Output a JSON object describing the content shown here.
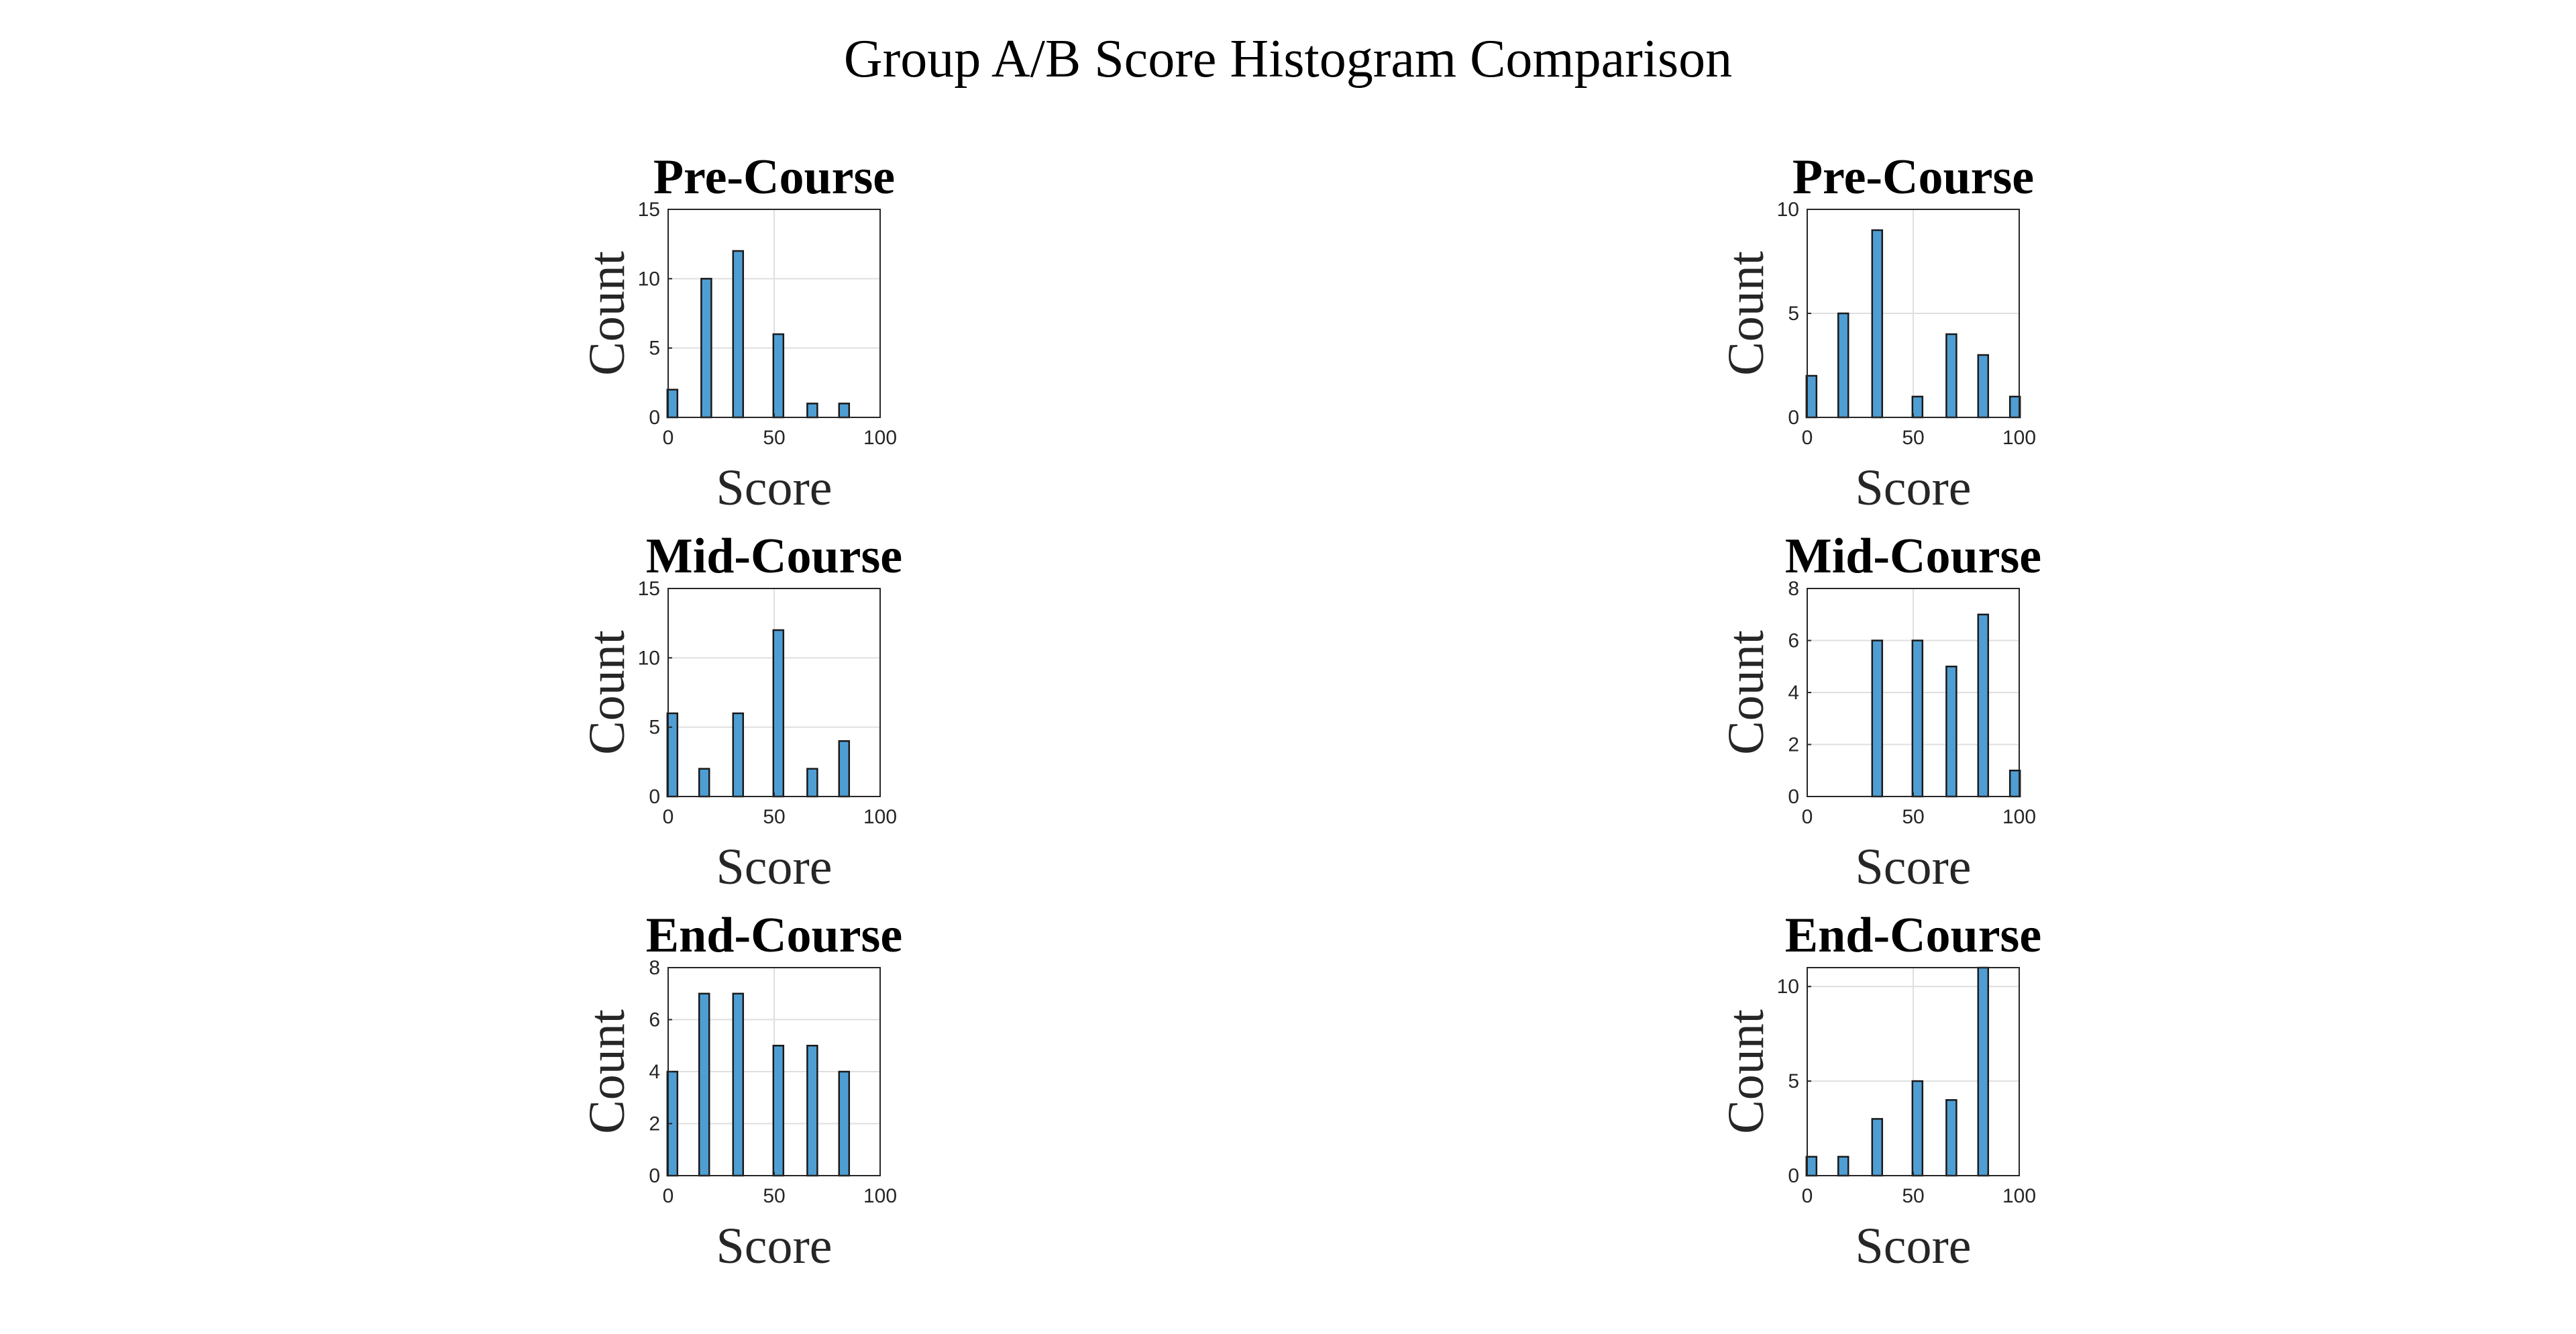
{
  "figure": {
    "title": "Group A/B Score Histogram Comparison",
    "bar_color": "#4f9ed3"
  },
  "chart_data": [
    {
      "type": "bar",
      "title": "Pre-Course",
      "xlabel": "Score",
      "ylabel": "Count",
      "xlim": [
        0,
        100
      ],
      "ylim": [
        0,
        15
      ],
      "xticks": [
        0,
        50,
        100
      ],
      "yticks": [
        0,
        5,
        10,
        15
      ],
      "grid": true,
      "x": [
        2,
        18,
        33,
        52,
        68,
        83
      ],
      "values": [
        2,
        10,
        12,
        6,
        1,
        1
      ]
    },
    {
      "type": "bar",
      "title": "Pre-Course",
      "xlabel": "Score",
      "ylabel": "Count",
      "xlim": [
        0,
        100
      ],
      "ylim": [
        0,
        10
      ],
      "xticks": [
        0,
        50,
        100
      ],
      "yticks": [
        0,
        5,
        10
      ],
      "grid": true,
      "x": [
        2,
        17,
        33,
        52,
        68,
        83,
        98
      ],
      "values": [
        2,
        5,
        9,
        1,
        4,
        3,
        1
      ]
    },
    {
      "type": "bar",
      "title": "Mid-Course",
      "xlabel": "Score",
      "ylabel": "Count",
      "xlim": [
        0,
        100
      ],
      "ylim": [
        0,
        15
      ],
      "xticks": [
        0,
        50,
        100
      ],
      "yticks": [
        0,
        5,
        10,
        15
      ],
      "grid": true,
      "x": [
        2,
        17,
        33,
        52,
        68,
        83
      ],
      "values": [
        6,
        2,
        6,
        12,
        2,
        4
      ]
    },
    {
      "type": "bar",
      "title": "Mid-Course",
      "xlabel": "Score",
      "ylabel": "Count",
      "xlim": [
        0,
        100
      ],
      "ylim": [
        0,
        8
      ],
      "xticks": [
        0,
        50,
        100
      ],
      "yticks": [
        0,
        2,
        4,
        6,
        8
      ],
      "grid": true,
      "x": [
        33,
        52,
        68,
        83,
        98
      ],
      "values": [
        6,
        6,
        5,
        7,
        1
      ]
    },
    {
      "type": "bar",
      "title": "End-Course",
      "xlabel": "Score",
      "ylabel": "Count",
      "xlim": [
        0,
        100
      ],
      "ylim": [
        0,
        8
      ],
      "xticks": [
        0,
        50,
        100
      ],
      "yticks": [
        0,
        2,
        4,
        6,
        8
      ],
      "grid": true,
      "x": [
        2,
        17,
        33,
        52,
        68,
        83
      ],
      "values": [
        4,
        7,
        7,
        5,
        5,
        4
      ]
    },
    {
      "type": "bar",
      "title": "End-Course",
      "xlabel": "Score",
      "ylabel": "Count",
      "xlim": [
        0,
        100
      ],
      "ylim": [
        0,
        11
      ],
      "xticks": [
        0,
        50,
        100
      ],
      "yticks": [
        0,
        5,
        10
      ],
      "grid": true,
      "x": [
        2,
        17,
        33,
        52,
        68,
        83
      ],
      "values": [
        1,
        1,
        3,
        5,
        4,
        11
      ]
    }
  ]
}
